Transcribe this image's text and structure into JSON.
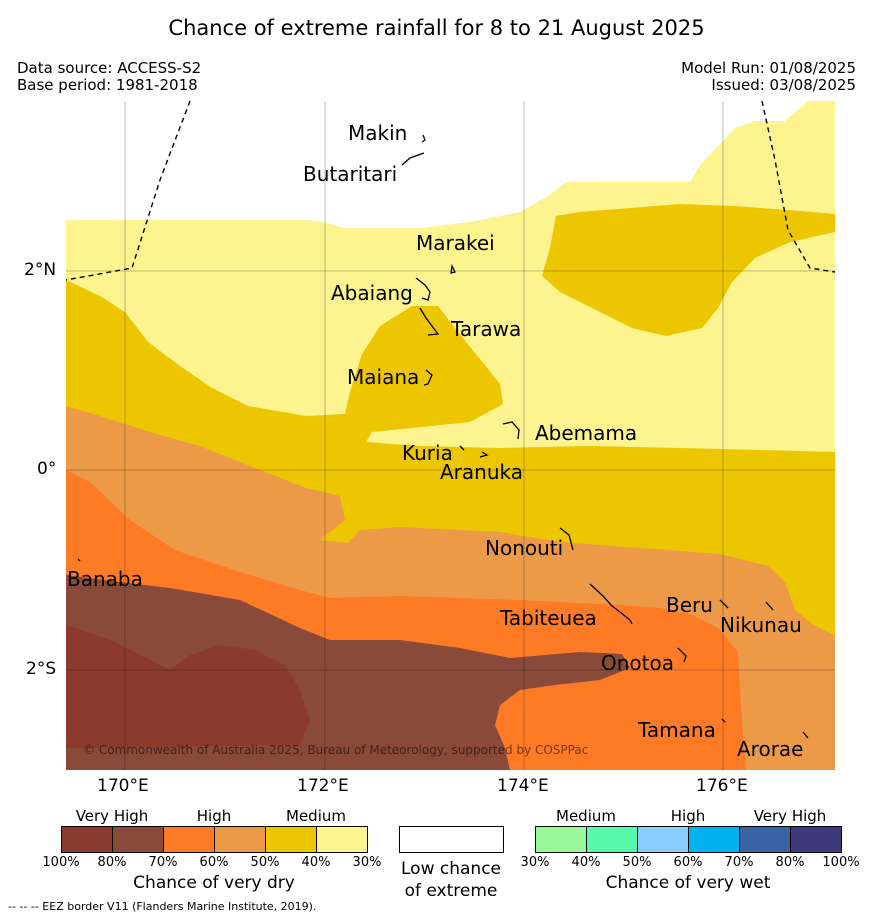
{
  "title": "Chance of extreme rainfall for 8 to 21 August 2025",
  "header": {
    "data_source": "Data source: ACCESS-S2",
    "base_period": "Base period: 1981-2018",
    "model_run": "Model Run: 01/08/2025",
    "issued": "Issued: 03/08/2025"
  },
  "map": {
    "lat_labels": [
      "2°N",
      "0°",
      "2°S"
    ],
    "lon_labels": [
      "170°E",
      "172°E",
      "174°E",
      "176°E"
    ],
    "places": {
      "makin": "Makin",
      "butaritari": "Butaritari",
      "marakei": "Marakei",
      "abaiang": "Abaiang",
      "tarawa": "Tarawa",
      "maiana": "Maiana",
      "abemama": "Abemama",
      "kuria": "Kuria",
      "aranuka": "Aranuka",
      "nonouti": "Nonouti",
      "banaba": "Banaba",
      "beru": "Beru",
      "tabiteuea": "Tabiteuea",
      "nikunau": "Nikunau",
      "onotoa": "Onotoa",
      "tamana": "Tamana",
      "arorae": "Arorae"
    },
    "copyright": "© Commonwealth of Australia 2025, Bureau of Meteorology, supported by COSPPac"
  },
  "legend": {
    "dry": {
      "headings": [
        "Very High",
        "High",
        "Medium"
      ],
      "ticks": [
        "100%",
        "80%",
        "70%",
        "60%",
        "50%",
        "40%",
        "30%"
      ],
      "colors": [
        "#8b3a2e",
        "#8a4a3a",
        "#fe7b26",
        "#ec9a48",
        "#ecc600",
        "#fdf48f"
      ],
      "caption": "Chance of very dry"
    },
    "low": {
      "caption_line1": "Low chance",
      "caption_line2": "of extreme",
      "color": "#ffffff"
    },
    "wet": {
      "headings": [
        "Medium",
        "High",
        "Very High"
      ],
      "ticks": [
        "30%",
        "40%",
        "50%",
        "60%",
        "70%",
        "80%",
        "100%"
      ],
      "colors": [
        "#99f999",
        "#58f9a9",
        "#8acdfd",
        "#00b3f0",
        "#3a63a3",
        "#3d3b7c"
      ],
      "caption": "Chance of very wet"
    }
  },
  "footnote": "--  --  -- EEZ border V11 (Flanders Marine Institute, 2019)."
}
